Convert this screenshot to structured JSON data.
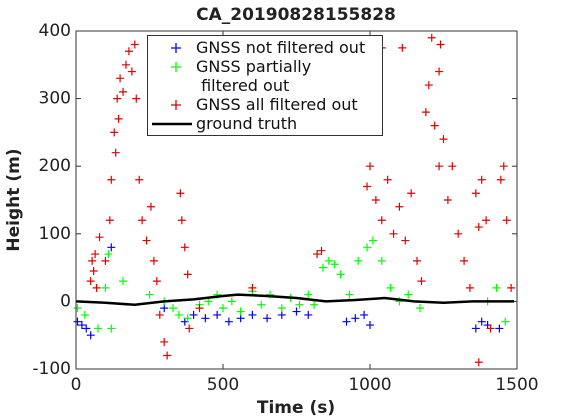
{
  "chart_data": {
    "type": "scatter",
    "title": "CA_20190828155828",
    "x_label": "Time (s)",
    "y_label": "Height (m)",
    "xlim": [
      0,
      1500
    ],
    "xticks": [
      0,
      500,
      1000,
      1500
    ],
    "ylim": [
      -100,
      400
    ],
    "yticks": [
      -100,
      0,
      100,
      200,
      300,
      400
    ],
    "legend": "upper center",
    "series": [
      {
        "name": "GNSS not filtered out",
        "color": "#0000ff",
        "marker": "+",
        "x": [
          5,
          20,
          35,
          50,
          120,
          300,
          370,
          400,
          440,
          480,
          520,
          560,
          600,
          650,
          700,
          750,
          790,
          920,
          950,
          980,
          1000,
          1360,
          1380,
          1400,
          1440
        ],
        "values": [
          -30,
          -35,
          -40,
          -50,
          80,
          -10,
          -30,
          -20,
          -25,
          -20,
          -30,
          -25,
          -20,
          -25,
          -20,
          -15,
          -20,
          -30,
          -25,
          -20,
          -35,
          -40,
          -30,
          -35,
          -40
        ]
      },
      {
        "name": "GNSS partially\n filtered out",
        "color": "#00ff00",
        "marker": "+",
        "x": [
          5,
          30,
          75,
          100,
          110,
          120,
          160,
          250,
          300,
          330,
          350,
          380,
          420,
          450,
          480,
          500,
          530,
          560,
          600,
          630,
          660,
          700,
          730,
          760,
          790,
          810,
          840,
          860,
          880,
          900,
          930,
          960,
          990,
          1010,
          1040,
          1070,
          1100,
          1130,
          1170,
          1400,
          1430,
          1460
        ],
        "values": [
          -10,
          -20,
          -40,
          20,
          70,
          -40,
          30,
          10,
          0,
          -10,
          -20,
          -25,
          -5,
          0,
          10,
          -10,
          0,
          -15,
          15,
          -5,
          10,
          -10,
          5,
          -5,
          10,
          -5,
          50,
          60,
          55,
          40,
          10,
          60,
          80,
          90,
          60,
          20,
          0,
          10,
          -10,
          0,
          20,
          -30
        ]
      },
      {
        "name": "GNSS all filtered out",
        "color": "#e00000",
        "marker": "+",
        "x": [
          50,
          55,
          60,
          65,
          70,
          80,
          100,
          115,
          120,
          130,
          135,
          140,
          145,
          150,
          160,
          170,
          180,
          190,
          200,
          205,
          215,
          225,
          240,
          255,
          265,
          275,
          285,
          300,
          310,
          355,
          360,
          370,
          380,
          385,
          420,
          600,
          820,
          835,
          990,
          1000,
          1020,
          1040,
          1060,
          1080,
          1100,
          1120,
          1140,
          1160,
          1175,
          1190,
          1200,
          1210,
          1220,
          1235,
          1250,
          1265,
          1280,
          1300,
          1320,
          1340,
          1360,
          1370,
          1380,
          1395,
          1410,
          1445,
          1455,
          1465,
          1480,
          1370,
          1040,
          1110,
          1235,
          1240
        ],
        "values": [
          30,
          60,
          45,
          70,
          20,
          95,
          60,
          120,
          180,
          250,
          220,
          300,
          270,
          330,
          310,
          350,
          370,
          340,
          380,
          300,
          180,
          120,
          90,
          140,
          60,
          30,
          -20,
          -60,
          -80,
          160,
          120,
          80,
          40,
          -40,
          -10,
          20,
          70,
          75,
          170,
          200,
          150,
          120,
          180,
          100,
          140,
          90,
          160,
          60,
          30,
          280,
          320,
          390,
          260,
          200,
          240,
          150,
          200,
          100,
          60,
          20,
          160,
          110,
          180,
          120,
          -40,
          180,
          200,
          120,
          20,
          -90,
          375,
          375,
          340,
          380
        ]
      },
      {
        "name": "ground truth",
        "color": "#000000",
        "marker": "line",
        "x": [
          0,
          100,
          200,
          300,
          400,
          500,
          550,
          650,
          750,
          850,
          950,
          1050,
          1150,
          1250,
          1350,
          1450,
          1490
        ],
        "values": [
          0,
          -2,
          -5,
          0,
          3,
          8,
          10,
          8,
          5,
          0,
          2,
          5,
          0,
          -2,
          0,
          0,
          0
        ]
      }
    ]
  }
}
